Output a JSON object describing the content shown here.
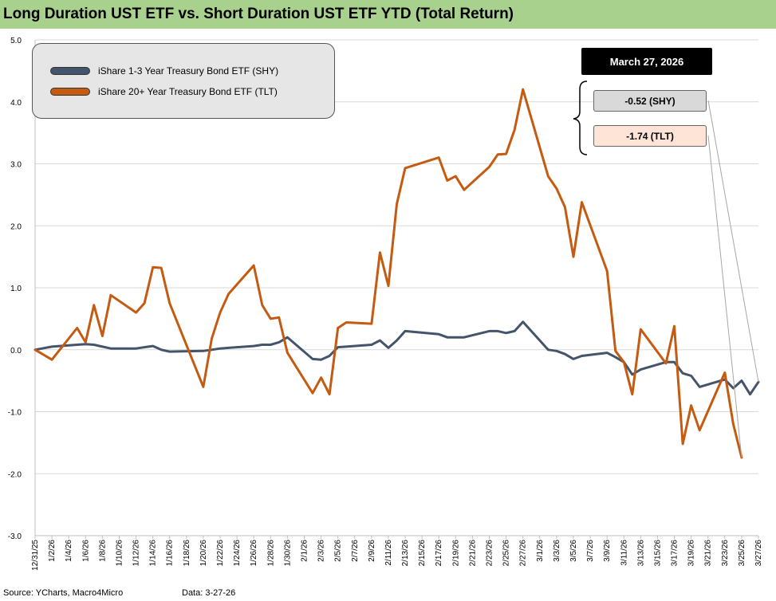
{
  "title": "Long Duration UST ETF vs. Short Duration UST ETF YTD (Total Return)",
  "source": "Source: YCharts, Macro4Micro",
  "data_note": "Data: 3-27-26",
  "callout": {
    "date": "March 27, 2026",
    "shy_label": "-0.52 (SHY)",
    "tlt_label": "-1.74 (TLT)"
  },
  "colors": {
    "shy": "#44546a",
    "tlt": "#c55a11",
    "title_bar": "#a9d18e",
    "grid": "#d9d9d9"
  },
  "chart_data": {
    "type": "line",
    "ylim": [
      -3.0,
      5.0
    ],
    "yticks": [
      "5.0",
      "4.0",
      "3.0",
      "2.0",
      "1.0",
      "0.0",
      "-1.0",
      "-2.0",
      "-3.0"
    ],
    "grid": "horizontal",
    "legend_position": "top-left",
    "xtick_labels": [
      "12/31/25",
      "1/2/26",
      "1/4/26",
      "1/6/26",
      "1/8/26",
      "1/10/26",
      "1/12/26",
      "1/14/26",
      "1/16/26",
      "1/18/26",
      "1/20/26",
      "1/22/26",
      "1/24/26",
      "1/26/26",
      "1/28/26",
      "1/30/26",
      "2/1/26",
      "2/3/26",
      "2/5/26",
      "2/7/26",
      "2/9/26",
      "2/11/26",
      "2/13/26",
      "2/15/26",
      "2/17/26",
      "2/19/26",
      "2/21/26",
      "2/23/26",
      "2/25/26",
      "2/27/26",
      "3/1/26",
      "3/3/26",
      "3/5/26",
      "3/7/26",
      "3/9/26",
      "3/11/26",
      "3/13/26",
      "3/15/26",
      "3/17/26",
      "3/19/26",
      "3/21/26",
      "3/23/26",
      "3/25/26",
      "3/27/26"
    ],
    "series": [
      {
        "name": "iShare 1-3 Year Treasury Bond ETF (SHY)",
        "key": "shy",
        "points": [
          [
            "12/31/25",
            0.0
          ],
          [
            "1/2/26",
            0.05
          ],
          [
            "1/5/26",
            0.08
          ],
          [
            "1/6/26",
            0.09
          ],
          [
            "1/7/26",
            0.08
          ],
          [
            "1/8/26",
            0.05
          ],
          [
            "1/9/26",
            0.02
          ],
          [
            "1/12/26",
            0.02
          ],
          [
            "1/13/26",
            0.04
          ],
          [
            "1/14/26",
            0.06
          ],
          [
            "1/15/26",
            0.0
          ],
          [
            "1/16/26",
            -0.03
          ],
          [
            "1/20/26",
            -0.02
          ],
          [
            "1/21/26",
            0.0
          ],
          [
            "1/22/26",
            0.02
          ],
          [
            "1/23/26",
            0.03
          ],
          [
            "1/26/26",
            0.06
          ],
          [
            "1/27/26",
            0.08
          ],
          [
            "1/28/26",
            0.08
          ],
          [
            "1/29/26",
            0.12
          ],
          [
            "1/30/26",
            0.2
          ],
          [
            "2/2/26",
            -0.15
          ],
          [
            "2/3/26",
            -0.16
          ],
          [
            "2/4/26",
            -0.1
          ],
          [
            "2/5/26",
            0.04
          ],
          [
            "2/6/26",
            0.05
          ],
          [
            "2/9/26",
            0.08
          ],
          [
            "2/10/26",
            0.15
          ],
          [
            "2/11/26",
            0.03
          ],
          [
            "2/12/26",
            0.15
          ],
          [
            "2/13/26",
            0.3
          ],
          [
            "2/17/26",
            0.25
          ],
          [
            "2/18/26",
            0.2
          ],
          [
            "2/19/26",
            0.2
          ],
          [
            "2/20/26",
            0.2
          ],
          [
            "2/23/26",
            0.3
          ],
          [
            "2/24/26",
            0.3
          ],
          [
            "2/25/26",
            0.27
          ],
          [
            "2/26/26",
            0.3
          ],
          [
            "2/27/26",
            0.45
          ],
          [
            "3/2/26",
            0.0
          ],
          [
            "3/3/26",
            -0.02
          ],
          [
            "3/4/26",
            -0.07
          ],
          [
            "3/5/26",
            -0.15
          ],
          [
            "3/6/26",
            -0.1
          ],
          [
            "3/9/26",
            -0.05
          ],
          [
            "3/10/26",
            -0.12
          ],
          [
            "3/11/26",
            -0.2
          ],
          [
            "3/12/26",
            -0.4
          ],
          [
            "3/13/26",
            -0.32
          ],
          [
            "3/16/26",
            -0.2
          ],
          [
            "3/17/26",
            -0.2
          ],
          [
            "3/18/26",
            -0.38
          ],
          [
            "3/19/26",
            -0.42
          ],
          [
            "3/20/26",
            -0.6
          ],
          [
            "3/23/26",
            -0.48
          ],
          [
            "3/24/26",
            -0.62
          ],
          [
            "3/25/26",
            -0.5
          ],
          [
            "3/26/26",
            -0.72
          ],
          [
            "3/27/26",
            -0.52
          ]
        ]
      },
      {
        "name": "iShare 20+ Year Treasury Bond ETF (TLT)",
        "key": "tlt",
        "points": [
          [
            "12/31/25",
            0.0
          ],
          [
            "1/2/26",
            -0.16
          ],
          [
            "1/5/26",
            0.35
          ],
          [
            "1/6/26",
            0.12
          ],
          [
            "1/7/26",
            0.72
          ],
          [
            "1/8/26",
            0.22
          ],
          [
            "1/9/26",
            0.88
          ],
          [
            "1/12/26",
            0.6
          ],
          [
            "1/13/26",
            0.75
          ],
          [
            "1/14/26",
            1.33
          ],
          [
            "1/15/26",
            1.32
          ],
          [
            "1/16/26",
            0.75
          ],
          [
            "1/20/26",
            -0.6
          ],
          [
            "1/21/26",
            0.18
          ],
          [
            "1/22/26",
            0.6
          ],
          [
            "1/23/26",
            0.9
          ],
          [
            "1/26/26",
            1.36
          ],
          [
            "1/27/26",
            0.72
          ],
          [
            "1/28/26",
            0.5
          ],
          [
            "1/29/26",
            0.52
          ],
          [
            "1/30/26",
            -0.05
          ],
          [
            "2/2/26",
            -0.7
          ],
          [
            "2/3/26",
            -0.45
          ],
          [
            "2/4/26",
            -0.72
          ],
          [
            "2/5/26",
            0.35
          ],
          [
            "2/6/26",
            0.44
          ],
          [
            "2/9/26",
            0.42
          ],
          [
            "2/10/26",
            1.57
          ],
          [
            "2/11/26",
            1.03
          ],
          [
            "2/12/26",
            2.35
          ],
          [
            "2/13/26",
            2.93
          ],
          [
            "2/17/26",
            3.1
          ],
          [
            "2/18/26",
            2.73
          ],
          [
            "2/19/26",
            2.8
          ],
          [
            "2/20/26",
            2.58
          ],
          [
            "2/23/26",
            2.95
          ],
          [
            "2/24/26",
            3.15
          ],
          [
            "2/25/26",
            3.16
          ],
          [
            "2/26/26",
            3.55
          ],
          [
            "2/27/26",
            4.2
          ],
          [
            "3/2/26",
            2.8
          ],
          [
            "3/3/26",
            2.6
          ],
          [
            "3/4/26",
            2.3
          ],
          [
            "3/5/26",
            1.5
          ],
          [
            "3/6/26",
            2.38
          ],
          [
            "3/9/26",
            1.27
          ],
          [
            "3/10/26",
            -0.02
          ],
          [
            "3/11/26",
            -0.2
          ],
          [
            "3/12/26",
            -0.72
          ],
          [
            "3/13/26",
            0.33
          ],
          [
            "3/16/26",
            -0.22
          ],
          [
            "3/17/26",
            0.38
          ],
          [
            "3/18/26",
            -1.52
          ],
          [
            "3/19/26",
            -0.9
          ],
          [
            "3/20/26",
            -1.3
          ],
          [
            "3/23/26",
            -0.37
          ],
          [
            "3/24/26",
            -1.2
          ],
          [
            "3/25/26",
            -1.74
          ]
        ]
      }
    ]
  }
}
